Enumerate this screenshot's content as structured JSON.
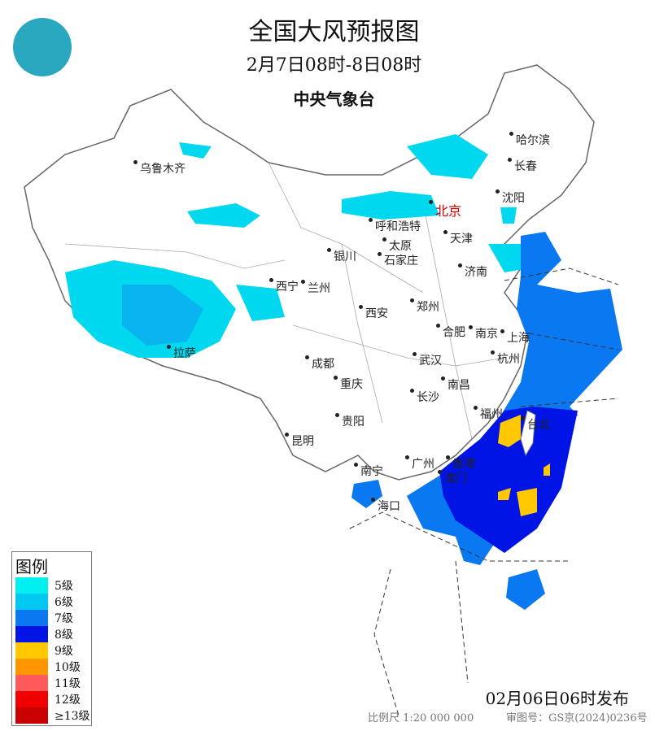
{
  "header": {
    "title": "全国大风预报图",
    "valid_period": "2月7日08时-8日08时",
    "issuer": "中央气象台"
  },
  "logo": {
    "icon": "cma-logo"
  },
  "cities": [
    {
      "name": "乌鲁木齐"
    },
    {
      "name": "哈尔滨"
    },
    {
      "name": "长春"
    },
    {
      "name": "沈阳"
    },
    {
      "name": "北京",
      "capital": true
    },
    {
      "name": "天津"
    },
    {
      "name": "呼和浩特"
    },
    {
      "name": "太原"
    },
    {
      "name": "石家庄"
    },
    {
      "name": "济南"
    },
    {
      "name": "银川"
    },
    {
      "name": "西宁"
    },
    {
      "name": "兰州"
    },
    {
      "name": "西安"
    },
    {
      "name": "郑州"
    },
    {
      "name": "合肥"
    },
    {
      "name": "南京"
    },
    {
      "name": "上海"
    },
    {
      "name": "杭州"
    },
    {
      "name": "武汉"
    },
    {
      "name": "成都"
    },
    {
      "name": "重庆"
    },
    {
      "name": "拉萨"
    },
    {
      "name": "长沙"
    },
    {
      "name": "南昌"
    },
    {
      "name": "贵阳"
    },
    {
      "name": "福州"
    },
    {
      "name": "台北"
    },
    {
      "name": "昆明"
    },
    {
      "name": "广州"
    },
    {
      "name": "香港"
    },
    {
      "name": "澳门"
    },
    {
      "name": "南宁"
    },
    {
      "name": "海口"
    }
  ],
  "legend": {
    "title": "图例",
    "items": [
      {
        "label": "5级",
        "color": "#00f0f0"
      },
      {
        "label": "6级",
        "color": "#00c8f0"
      },
      {
        "label": "7级",
        "color": "#0a78f0"
      },
      {
        "label": "8级",
        "color": "#0014e6"
      },
      {
        "label": "9级",
        "color": "#ffc800"
      },
      {
        "label": "10级",
        "color": "#ff9600"
      },
      {
        "label": "11级",
        "color": "#ff5a5a"
      },
      {
        "label": "12级",
        "color": "#f00000"
      },
      {
        "label": "≥13级",
        "color": "#c80000"
      }
    ]
  },
  "footer": {
    "issued": "02月06日06时发布",
    "scale": "比例尺 1:20 000 000",
    "review_no": "审图号：GS京(2024)0236号"
  }
}
